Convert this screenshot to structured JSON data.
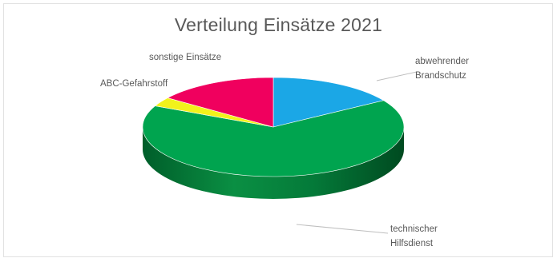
{
  "chart_data": {
    "type": "pie",
    "title": "Verteilung Einsätze 2021",
    "three_d": true,
    "categories": [
      "abwehrender Brandschutz",
      "technischer Hilfsdienst",
      "ABC-Gefahrstoff",
      "sonstige Einsätze"
    ],
    "values": [
      16,
      66,
      3,
      15
    ],
    "colors": [
      "#1ba7e6",
      "#00a44f",
      "#f2f21b",
      "#f0005e"
    ],
    "legend": "none",
    "label_lines": [
      [
        "abwehrender",
        "Brandschutz"
      ],
      [
        "technischer",
        "Hilfsdienst"
      ],
      [
        "ABC-Gefahrstoff"
      ],
      [
        "sonstige Einsätze"
      ]
    ]
  }
}
